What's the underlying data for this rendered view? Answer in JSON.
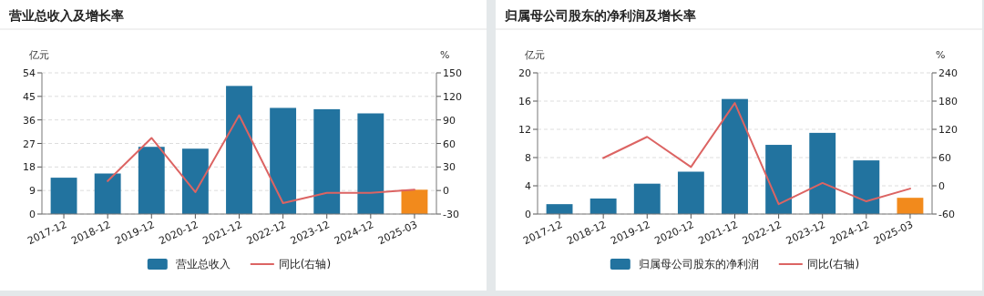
{
  "chart_data": [
    {
      "type": "bar",
      "title": "营业总收入及增长率",
      "ylabel": "亿元",
      "y2label": "%",
      "categories": [
        "2017-12",
        "2018-12",
        "2019-12",
        "2020-12",
        "2021-12",
        "2022-12",
        "2023-12",
        "2024-12",
        "2025-03"
      ],
      "series": [
        {
          "name": "营业总收入",
          "color": "#22739f",
          "colors": [
            "#22739f",
            "#22739f",
            "#22739f",
            "#22739f",
            "#22739f",
            "#22739f",
            "#22739f",
            "#22739f",
            "#f28a1c"
          ],
          "values": [
            13.9,
            15.5,
            25.7,
            25.0,
            49.0,
            40.6,
            40.1,
            38.5,
            9.3
          ]
        },
        {
          "name": "同比(右轴)",
          "type": "line",
          "axis": "y2",
          "color": "#dc6463",
          "values": [
            null,
            12,
            67,
            -2,
            96,
            -16,
            -3,
            -3,
            1
          ]
        }
      ],
      "ylim": [
        0,
        54
      ],
      "yticks": [
        0,
        9,
        18,
        27,
        36,
        45,
        54
      ],
      "y2lim": [
        -30,
        150
      ],
      "y2ticks": [
        -30,
        0,
        30,
        60,
        90,
        120,
        150
      ],
      "grid": "y",
      "legend": "bottom"
    },
    {
      "type": "bar",
      "title": "归属母公司股东的净利润及增长率",
      "ylabel": "亿元",
      "y2label": "%",
      "categories": [
        "2017-12",
        "2018-12",
        "2019-12",
        "2020-12",
        "2021-12",
        "2022-12",
        "2023-12",
        "2024-12",
        "2025-03"
      ],
      "series": [
        {
          "name": "归属母公司股东的净利润",
          "color": "#22739f",
          "colors": [
            "#22739f",
            "#22739f",
            "#22739f",
            "#22739f",
            "#22739f",
            "#22739f",
            "#22739f",
            "#22739f",
            "#f28a1c"
          ],
          "values": [
            1.4,
            2.2,
            4.3,
            6.0,
            16.3,
            9.8,
            11.5,
            7.6,
            2.3
          ]
        },
        {
          "name": "同比(右轴)",
          "type": "line",
          "axis": "y2",
          "color": "#dc6463",
          "values": [
            null,
            59,
            104,
            40,
            176,
            -39,
            6,
            -33,
            -6
          ]
        }
      ],
      "ylim": [
        0,
        20
      ],
      "yticks": [
        0,
        4,
        8,
        12,
        16,
        20
      ],
      "y2lim": [
        -60,
        240
      ],
      "y2ticks": [
        -60,
        0,
        60,
        120,
        180,
        240
      ],
      "grid": "y",
      "legend": "bottom"
    }
  ]
}
